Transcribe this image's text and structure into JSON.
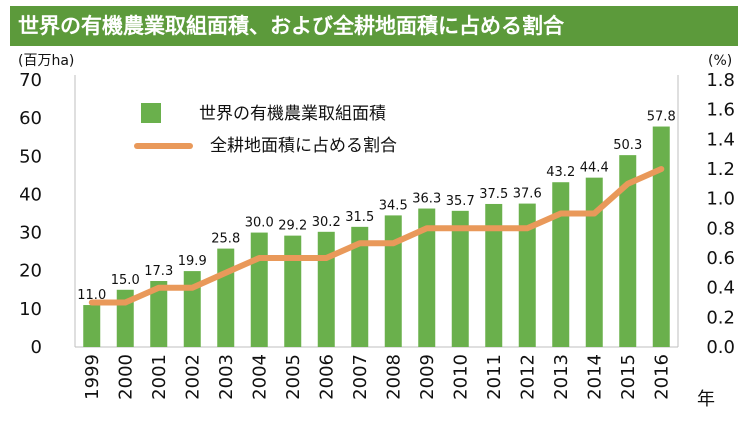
{
  "title": "世界の有機農業取組面積、および全耕地面積に占める割合",
  "chart_data": {
    "type": "bar",
    "categories": [
      "1999",
      "2000",
      "2001",
      "2002",
      "2003",
      "2004",
      "2005",
      "2006",
      "2007",
      "2008",
      "2009",
      "2010",
      "2011",
      "2012",
      "2013",
      "2014",
      "2015",
      "2016"
    ],
    "series": [
      {
        "name": "世界の有機農業取組面積",
        "type": "bar",
        "axis": "left",
        "color": "#6ab04c",
        "values": [
          11.0,
          15.0,
          17.3,
          19.9,
          25.8,
          30.0,
          29.2,
          30.2,
          31.5,
          34.5,
          36.3,
          35.7,
          37.5,
          37.6,
          43.2,
          44.4,
          50.3,
          57.8
        ],
        "labels": [
          "11.0",
          "15.0",
          "17.3",
          "19.9",
          "25.8",
          "30.0",
          "29.2",
          "30.2",
          "31.5",
          "34.5",
          "36.3",
          "35.7",
          "37.5",
          "37.6",
          "43.2",
          "44.4",
          "50.3",
          "57.8"
        ]
      },
      {
        "name": "全耕地面積に占める割合",
        "type": "line",
        "axis": "right",
        "color": "#e9995a",
        "values": [
          0.3,
          0.3,
          0.4,
          0.4,
          0.5,
          0.6,
          0.6,
          0.6,
          0.7,
          0.7,
          0.8,
          0.8,
          0.8,
          0.8,
          0.9,
          0.9,
          1.1,
          1.2
        ]
      }
    ],
    "y_left": {
      "unit": "(百万ha)",
      "min": 0,
      "max": 70,
      "ticks": [
        "0",
        "10",
        "20",
        "30",
        "40",
        "50",
        "60",
        "70"
      ]
    },
    "y_right": {
      "unit": "(%)",
      "min": 0,
      "max": 1.8,
      "ticks": [
        "0.0",
        "0.2",
        "0.4",
        "0.6",
        "0.8",
        "1.0",
        "1.2",
        "1.4",
        "1.6",
        "1.8"
      ]
    },
    "x_unit": "年",
    "grid": false,
    "legend_position": "top-left"
  }
}
